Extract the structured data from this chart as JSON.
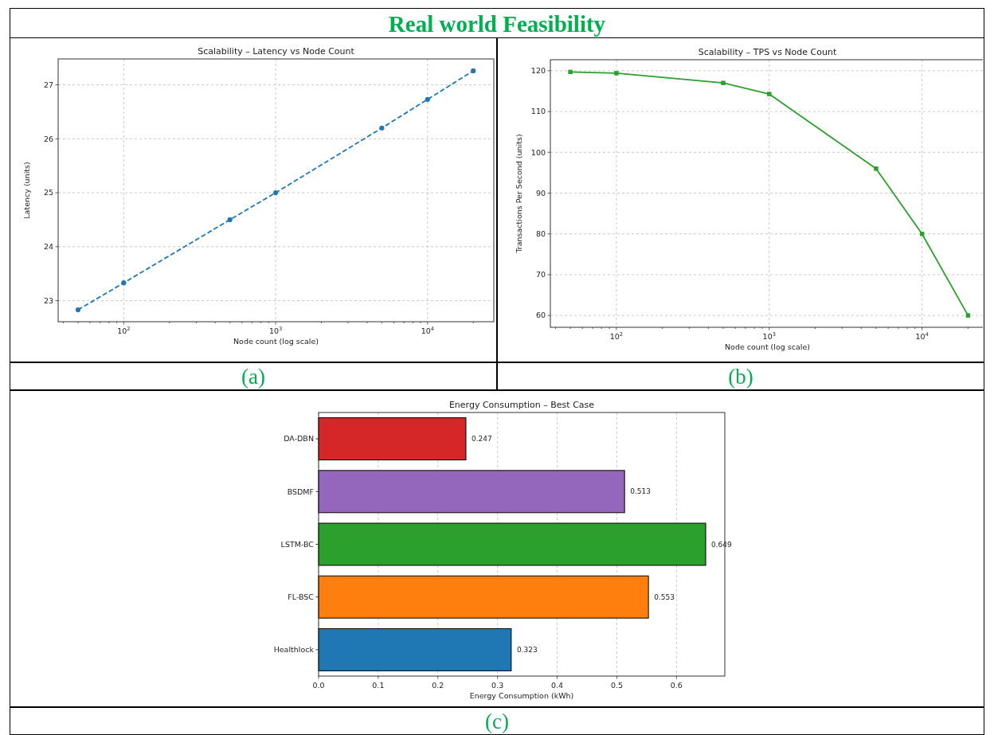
{
  "chart_data": [
    {
      "type": "line",
      "title": "Scalability – Latency vs Node Count",
      "xlabel": "Node count (log scale)",
      "ylabel": "Latency (units)",
      "annotations": [
        "Real world Feasibility",
        "(a)"
      ],
      "x": [
        50,
        100,
        500,
        1000,
        5000,
        10000,
        20000
      ],
      "series": [
        {
          "color": "#1f77b4",
          "values": [
            22.83,
            23.33,
            24.5,
            25.0,
            26.2,
            26.73,
            27.26
          ]
        }
      ],
      "xlim": [
        37,
        27300
      ],
      "ylim": [
        22.61,
        27.48
      ],
      "xticks": [
        {
          "value": 40,
          "label": null
        },
        {
          "value": 50,
          "label": null
        },
        {
          "value": 60,
          "label": null
        },
        {
          "value": 70,
          "label": null
        },
        {
          "value": 80,
          "label": null
        },
        {
          "value": 90,
          "label": null
        },
        {
          "value": 100,
          "label": "10$^{2}$"
        },
        {
          "value": 200,
          "label": null
        },
        {
          "value": 300,
          "label": null
        },
        {
          "value": 400,
          "label": null
        },
        {
          "value": 500,
          "label": null
        },
        {
          "value": 600,
          "label": null
        },
        {
          "value": 700,
          "label": null
        },
        {
          "value": 800,
          "label": null
        },
        {
          "value": 900,
          "label": null
        },
        {
          "value": 1000,
          "label": "10$^{3}$"
        },
        {
          "value": 2000,
          "label": null
        },
        {
          "value": 3000,
          "label": null
        },
        {
          "value": 4000,
          "label": null
        },
        {
          "value": 5000,
          "label": null
        },
        {
          "value": 6000,
          "label": null
        },
        {
          "value": 7000,
          "label": null
        },
        {
          "value": 8000,
          "label": null
        },
        {
          "value": 9000,
          "label": null
        },
        {
          "value": 10000,
          "label": "10$^{4}$"
        },
        {
          "value": 20000,
          "label": null
        }
      ],
      "yticks": [
        23,
        24,
        25,
        26,
        27
      ],
      "log": "x",
      "grid": true,
      "marker": "circle",
      "line_style": "dashed"
    },
    {
      "type": "line",
      "title": "Scalability – TPS vs Node Count",
      "xlabel": "Node count (log scale)",
      "ylabel": "Transactions Per Second (units)",
      "annotations": [
        "(b)"
      ],
      "x": [
        50,
        100,
        500,
        1000,
        5000,
        10000,
        20000
      ],
      "series": [
        {
          "color": "#2ca02c",
          "values": [
            119.7,
            119.4,
            117.0,
            114.3,
            96.0,
            80.0,
            60.0
          ]
        }
      ],
      "xlim": [
        37,
        25600
      ],
      "ylim": [
        57.1,
        122.7
      ],
      "xticks": [
        {
          "value": 40,
          "label": null
        },
        {
          "value": 50,
          "label": null
        },
        {
          "value": 60,
          "label": null
        },
        {
          "value": 70,
          "label": null
        },
        {
          "value": 80,
          "label": null
        },
        {
          "value": 90,
          "label": null
        },
        {
          "value": 100,
          "label": "10$^{2}$"
        },
        {
          "value": 200,
          "label": null
        },
        {
          "value": 300,
          "label": null
        },
        {
          "value": 400,
          "label": null
        },
        {
          "value": 500,
          "label": null
        },
        {
          "value": 600,
          "label": null
        },
        {
          "value": 700,
          "label": null
        },
        {
          "value": 800,
          "label": null
        },
        {
          "value": 900,
          "label": null
        },
        {
          "value": 1000,
          "label": "10$^{3}$"
        },
        {
          "value": 2000,
          "label": null
        },
        {
          "value": 3000,
          "label": null
        },
        {
          "value": 4000,
          "label": null
        },
        {
          "value": 5000,
          "label": null
        },
        {
          "value": 6000,
          "label": null
        },
        {
          "value": 7000,
          "label": null
        },
        {
          "value": 8000,
          "label": null
        },
        {
          "value": 9000,
          "label": null
        },
        {
          "value": 10000,
          "label": "10$^{4}$"
        },
        {
          "value": 20000,
          "label": null
        }
      ],
      "yticks": [
        60,
        70,
        80,
        90,
        100,
        110,
        120
      ],
      "log": "x",
      "grid": true,
      "marker": "square",
      "line_style": "solid"
    },
    {
      "type": "bar",
      "orientation": "horizontal",
      "title": "Energy Consumption – Best Case",
      "xlabel": "Energy Consumption (kWh)",
      "annotations": [
        "(c)"
      ],
      "categories": [
        "DA-DBN",
        "BSDMF",
        "LSTM-BC",
        "FL-BSC",
        "Healthlock"
      ],
      "values": [
        0.247,
        0.513,
        0.649,
        0.553,
        0.323
      ],
      "colors": [
        "#d62728",
        "#9467bd",
        "#2ca02c",
        "#ff7f0e",
        "#1f77b4"
      ],
      "xlim": [
        0,
        0.681
      ],
      "xticks": [
        {
          "value": 0,
          "label": "0.0"
        },
        0.1,
        0.2,
        0.3,
        0.4,
        0.5,
        0.6
      ],
      "grid": "x",
      "data_labels": true
    }
  ]
}
